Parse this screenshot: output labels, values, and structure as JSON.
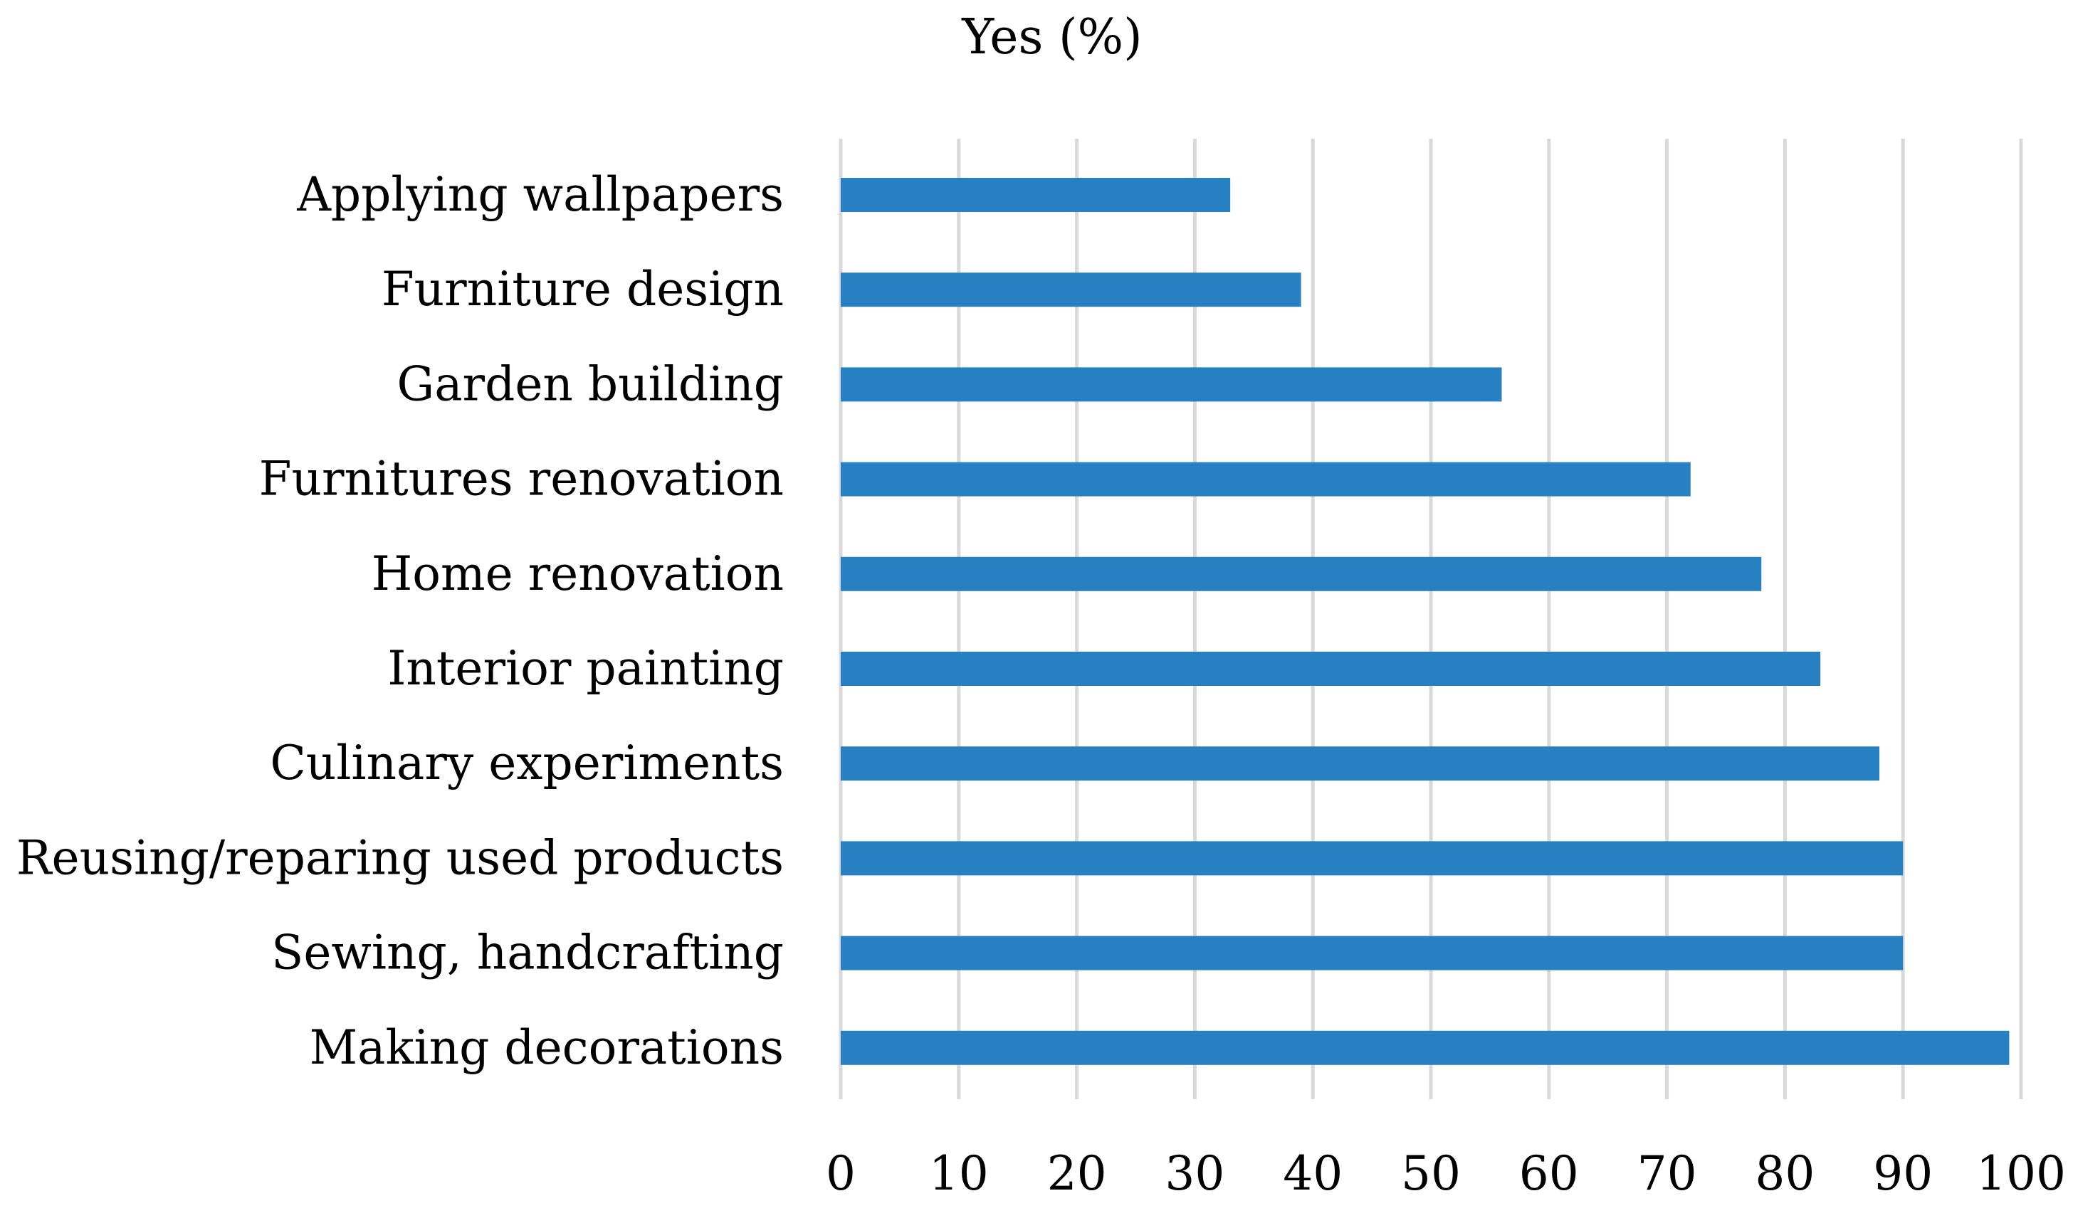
{
  "chart_data": {
    "type": "bar",
    "orientation": "horizontal",
    "title": "Yes (%)",
    "xlabel": "",
    "ylabel": "",
    "xlim": [
      0,
      100
    ],
    "xticks": [
      0,
      10,
      20,
      30,
      40,
      50,
      60,
      70,
      80,
      90,
      100
    ],
    "grid": "vertical",
    "legend": "none",
    "categories": [
      "Applying wallpapers",
      "Furniture design",
      "Garden building",
      "Furnitures renovation",
      "Home renovation",
      "Interior painting",
      "Culinary experiments",
      "Reusing/reparing used products",
      "Sewing, handcrafting",
      "Making decorations"
    ],
    "series": [
      {
        "values": [
          33,
          39,
          56,
          72,
          78,
          83,
          88,
          90,
          90,
          99
        ]
      }
    ],
    "colors": {
      "bar": "#2680C2",
      "grid": "#D9D9D9",
      "text": "#000000"
    }
  }
}
